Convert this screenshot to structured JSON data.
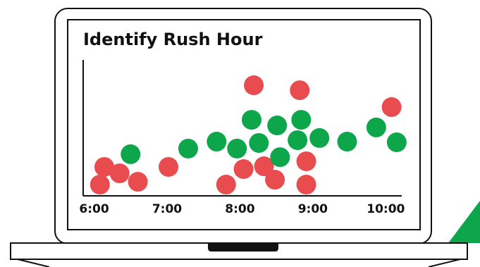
{
  "chart_data": {
    "type": "scatter",
    "title": "Identify Rush Hour",
    "xlim": [
      5.85,
      10.2
    ],
    "ylim": [
      0,
      10
    ],
    "xticks": [
      {
        "value": 6,
        "label": "6:00"
      },
      {
        "value": 7,
        "label": "7:00"
      },
      {
        "value": 8,
        "label": "8:00"
      },
      {
        "value": 9,
        "label": "9:00"
      },
      {
        "value": 10,
        "label": "10:00"
      }
    ],
    "series": [
      {
        "color": "#e84c4f",
        "x": [
          6.14,
          6.08,
          6.35,
          6.6,
          7.02,
          8.19,
          8.82,
          10.08,
          7.81,
          8.05,
          8.33,
          8.48,
          8.91,
          8.91
        ],
        "values": [
          2.16,
          0.84,
          1.68,
          1.05,
          2.16,
          8.26,
          7.89,
          6.63,
          0.84,
          2.0,
          2.21,
          1.21,
          2.58,
          0.84
        ]
      },
      {
        "color": "#0ea64b",
        "x": [
          6.5,
          7.29,
          7.68,
          7.96,
          8.16,
          8.26,
          8.51,
          8.55,
          8.84,
          8.79,
          9.09,
          9.47,
          9.87,
          10.15
        ],
        "values": [
          3.11,
          3.53,
          4.05,
          3.53,
          5.68,
          3.95,
          5.26,
          2.89,
          5.68,
          4.16,
          4.32,
          4.05,
          5.11,
          4.0
        ]
      }
    ]
  }
}
